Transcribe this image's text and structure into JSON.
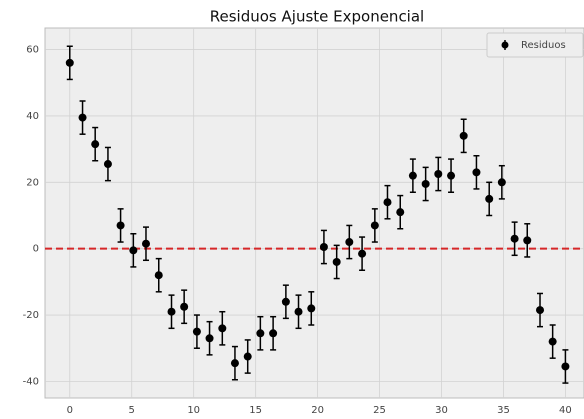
{
  "chart_data": {
    "type": "errorbar",
    "title": "Residuos Ajuste Exponencial",
    "x": [
      0,
      1.03,
      2.05,
      3.08,
      4.1,
      5.13,
      6.15,
      7.18,
      8.21,
      9.23,
      10.26,
      11.28,
      12.31,
      13.33,
      14.36,
      15.38,
      16.41,
      17.44,
      18.46,
      19.49,
      20.51,
      21.54,
      22.56,
      23.59,
      24.62,
      25.64,
      26.67,
      27.69,
      28.72,
      29.74,
      30.77,
      31.79,
      32.82,
      33.85,
      34.87,
      35.9,
      36.92,
      37.95,
      38.97,
      40
    ],
    "series": [
      {
        "name": "Residuos",
        "color": "#000000",
        "values": [
          56,
          39.5,
          31.5,
          25.5,
          7,
          -0.5,
          1.5,
          -8,
          -19,
          -17.5,
          -25,
          -27,
          -24,
          -34.5,
          -32.5,
          -25.5,
          -25.5,
          -16,
          -19,
          -18,
          0.5,
          -4,
          2,
          -1.5,
          7,
          14,
          11,
          22,
          19.5,
          22.5,
          22,
          34,
          23,
          15,
          20,
          3,
          2.5,
          -18.5,
          -28,
          -35.5
        ],
        "errors": [
          5,
          5,
          5,
          5,
          5,
          5,
          5,
          5,
          5,
          5,
          5,
          5,
          5,
          5,
          5,
          5,
          5,
          5,
          5,
          5,
          5,
          5,
          5,
          5,
          5,
          5,
          5,
          5,
          5,
          5,
          5,
          5,
          5,
          5,
          5,
          5,
          5,
          5,
          5,
          5
        ]
      }
    ],
    "hline": {
      "value": 0,
      "color": "#d62728"
    },
    "xlim": [
      -2,
      41.5
    ],
    "ylim": [
      -45,
      66.5
    ],
    "xticks": [
      0,
      5,
      10,
      15,
      20,
      25,
      30,
      35,
      40
    ],
    "yticks": [
      -40,
      -20,
      0,
      20,
      40,
      60
    ],
    "grid": true,
    "legend": "upper right"
  }
}
